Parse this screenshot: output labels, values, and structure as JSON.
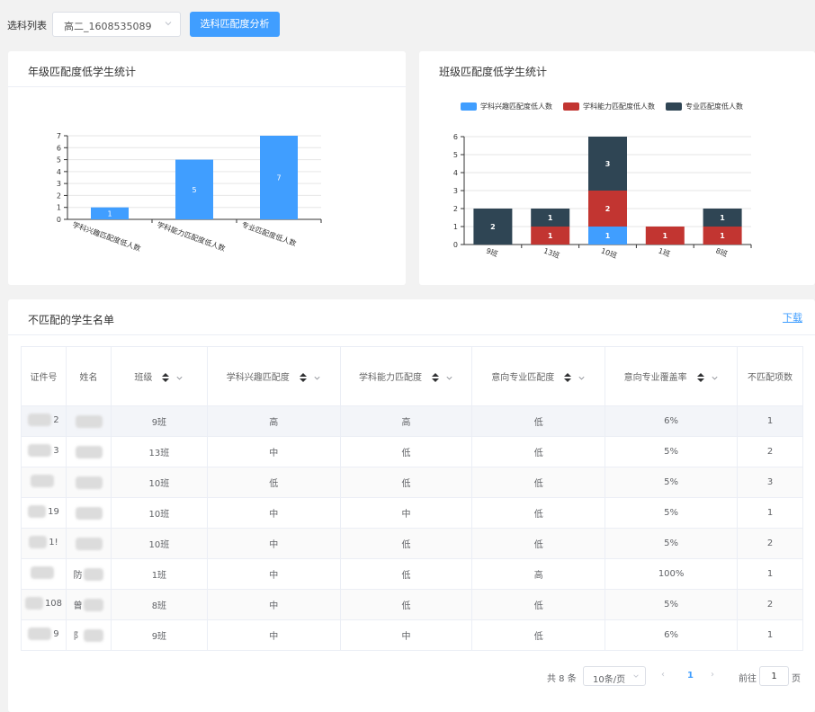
{
  "toolbar": {
    "label": "选科列表",
    "select_value": "高二_1608535089",
    "analyze_button": "选科匹配度分析"
  },
  "grade_chart": {
    "title": "年级匹配度低学生统计"
  },
  "class_chart": {
    "title": "班级匹配度低学生统计"
  },
  "student_list": {
    "title": "不匹配的学生名单",
    "download_label": "下载",
    "columns": [
      "证件号",
      "姓名",
      "班级",
      "学科兴趣匹配度",
      "学科能力匹配度",
      "意向专业匹配度",
      "意向专业覆盖率",
      "不匹配项数"
    ],
    "rows": [
      {
        "id_tail": "2",
        "name": "",
        "class": "9班",
        "interest": "高",
        "ability": "高",
        "major": "低",
        "coverage": "6%",
        "count": "1"
      },
      {
        "id_tail": "3",
        "name": "",
        "class": "13班",
        "interest": "中",
        "ability": "低",
        "major": "低",
        "coverage": "5%",
        "count": "2"
      },
      {
        "id_tail": "",
        "name": "",
        "class": "10班",
        "interest": "低",
        "ability": "低",
        "major": "低",
        "coverage": "5%",
        "count": "3"
      },
      {
        "id_tail": "19",
        "name": "",
        "class": "10班",
        "interest": "中",
        "ability": "中",
        "major": "低",
        "coverage": "5%",
        "count": "1"
      },
      {
        "id_tail": "1!",
        "name": "",
        "class": "10班",
        "interest": "中",
        "ability": "低",
        "major": "低",
        "coverage": "5%",
        "count": "2"
      },
      {
        "id_tail": "",
        "name": "防",
        "class": "1班",
        "interest": "中",
        "ability": "低",
        "major": "高",
        "coverage": "100%",
        "count": "1"
      },
      {
        "id_tail": "108",
        "name": "曾",
        "class": "8班",
        "interest": "中",
        "ability": "低",
        "major": "低",
        "coverage": "5%",
        "count": "2"
      },
      {
        "id_tail": "9",
        "name": "阝",
        "class": "9班",
        "interest": "中",
        "ability": "中",
        "major": "低",
        "coverage": "6%",
        "count": "1"
      }
    ]
  },
  "pagination": {
    "total": "共 8 条",
    "page_size": "10条/页",
    "current_page": "1",
    "goto_label": "前往",
    "goto_value": "1",
    "page_unit": "页"
  },
  "colors": {
    "primary": "#409eff",
    "interest": "#409eff",
    "ability": "#c23531",
    "major": "#2f4554"
  },
  "chart_data": [
    {
      "type": "bar",
      "categories": [
        "学科兴趣匹配度低人数",
        "学科能力匹配度低人数",
        "专业匹配度低人数"
      ],
      "values": [
        1,
        5,
        7
      ],
      "ylim": [
        0,
        7
      ],
      "grid": true
    },
    {
      "type": "bar",
      "stacked": true,
      "categories": [
        "9班",
        "13班",
        "10班",
        "1班",
        "8班"
      ],
      "series": [
        {
          "name": "学科兴趣匹配度低人数",
          "color": "#409eff",
          "values": [
            0,
            0,
            1,
            0,
            0
          ]
        },
        {
          "name": "学科能力匹配度低人数",
          "color": "#c23531",
          "values": [
            0,
            1,
            2,
            1,
            1
          ]
        },
        {
          "name": "专业匹配度低人数",
          "color": "#2f4554",
          "values": [
            2,
            1,
            3,
            0,
            1
          ]
        }
      ],
      "ylim": [
        0,
        6
      ],
      "grid": true,
      "legend": "top"
    }
  ]
}
